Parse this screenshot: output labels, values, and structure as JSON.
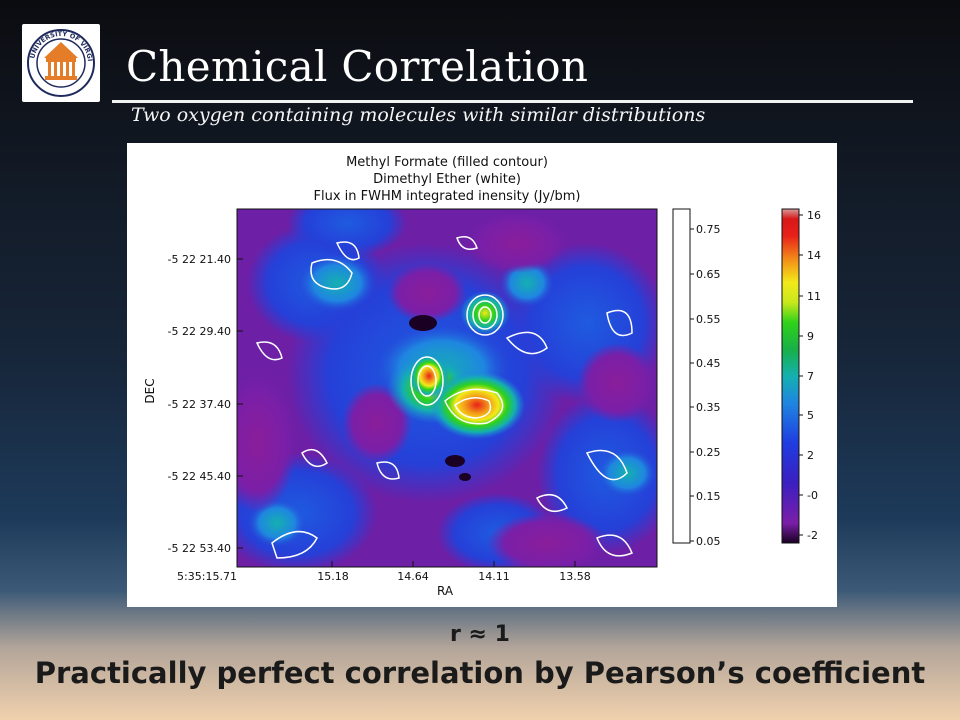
{
  "slide": {
    "title": "Chemical Correlation",
    "subtitle": "Two oxygen containing molecules with similar distributions",
    "r_label": "r ≈ 1",
    "conclusion": "Practically perfect correlation by Pearson’s coefficient",
    "logo_text": "UNIVERSITY OF VIRGINIA"
  },
  "figure": {
    "title_lines": [
      "Methyl Formate  (filled contour)",
      "Dimethyl Ether (white)",
      "Flux in FWHM integrated inensity (Jy/bm)"
    ],
    "y_axis_label": "DEC",
    "x_axis_label": "RA",
    "y_ticks": [
      "-5 22 21.40",
      "-5 22 29.40",
      "-5 22 37.40",
      "-5 22 45.40",
      "-5 22 53.40"
    ],
    "x_ticks": [
      "5:35:15.71",
      "15.18",
      "14.64",
      "14.11",
      "13.58"
    ],
    "white_colorbar_ticks": [
      "0.75",
      "0.65",
      "0.55",
      "0.45",
      "0.35",
      "0.25",
      "0.15",
      "0.05"
    ],
    "color_colorbar_ticks": [
      "16",
      "14",
      "11",
      "9",
      "7",
      "5",
      "2",
      "-0",
      "-2"
    ],
    "colors": {
      "map_background": "#6d1fa6",
      "low_blue": "#1f3de0",
      "peak_red": "#e8201a",
      "slide_text": "#ffffff"
    }
  }
}
